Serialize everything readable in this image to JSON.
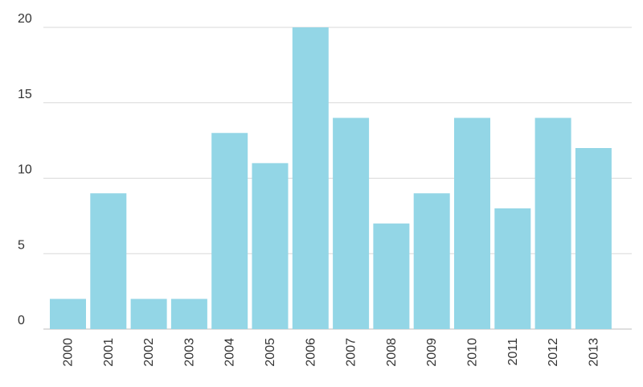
{
  "chart_data": {
    "type": "bar",
    "categories": [
      "2000",
      "2001",
      "2002",
      "2003",
      "2004",
      "2005",
      "2006",
      "2007",
      "2008",
      "2009",
      "2010",
      "2011",
      "2012",
      "2013"
    ],
    "values": [
      2,
      9,
      2,
      2,
      13,
      11,
      20,
      14,
      7,
      9,
      14,
      8,
      14,
      12
    ],
    "title": "",
    "xlabel": "",
    "ylabel": "",
    "ylim": [
      0,
      20
    ],
    "yticks": [
      "0",
      "5",
      "10",
      "15",
      "20"
    ],
    "grid": true,
    "legend": "none",
    "bar_color": "#93d6e6"
  }
}
